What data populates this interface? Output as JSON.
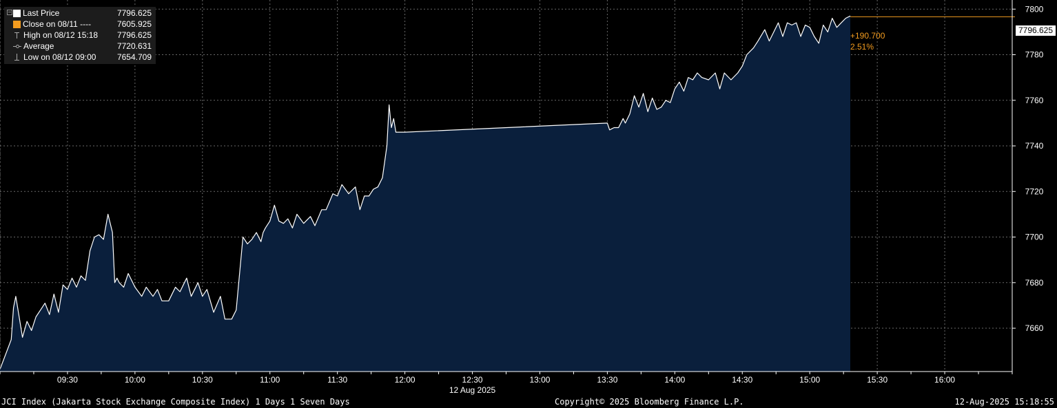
{
  "legend": {
    "last_price": {
      "label": "Last Price",
      "value": "7796.625"
    },
    "close": {
      "label": "Close on 08/11 ----",
      "value": "7605.925"
    },
    "high": {
      "label": "High on 08/12 15:18",
      "value": "7796.625"
    },
    "average": {
      "label": "Average",
      "value": "7720.631"
    },
    "low": {
      "label": "Low on 08/12 09:00",
      "value": "7654.709"
    }
  },
  "change": {
    "abs": "+190.700",
    "pct": "2.51%"
  },
  "last_tag": "7796.625",
  "footer": {
    "left": "JCI Index (Jakarta Stock Exchange Composite Index) 1 Days 1 Seven Days",
    "center": "Copyright© 2025 Bloomberg Finance L.P.",
    "right": "12-Aug-2025 15:18:55"
  },
  "colors": {
    "line": "#ffffff",
    "area": "#0a1f3c",
    "accent": "#f39c1f",
    "grid": "#6a6a6a",
    "axis": "#ffffff"
  },
  "chart_data": {
    "type": "area",
    "date_label": "12 Aug 2025",
    "x_ticks": [
      "09:30",
      "10:00",
      "10:30",
      "11:00",
      "11:30",
      "12:00",
      "12:30",
      "13:00",
      "13:30",
      "14:00",
      "14:30",
      "15:00",
      "15:30",
      "16:00"
    ],
    "x_range": [
      "09:00",
      "16:30"
    ],
    "y_ticks": [
      7660,
      7680,
      7700,
      7720,
      7740,
      7760,
      7780,
      7800
    ],
    "ylim": [
      7641,
      7804
    ],
    "grid": true,
    "reference_line": 7796.625,
    "series": [
      {
        "x": [
          "09:00",
          "09:05",
          "09:06",
          "09:07",
          "09:09",
          "09:10",
          "09:12",
          "09:14",
          "09:16",
          "09:18",
          "09:20",
          "09:22",
          "09:24",
          "09:26",
          "09:28",
          "09:30",
          "09:32",
          "09:34",
          "09:36",
          "09:38",
          "09:40",
          "09:42",
          "09:44",
          "09:46",
          "09:48",
          "09:50",
          "09:51",
          "09:52",
          "09:53",
          "09:55",
          "09:57",
          "10:00",
          "10:03",
          "10:05",
          "10:08",
          "10:10",
          "10:12",
          "10:15",
          "10:18",
          "10:20",
          "10:23",
          "10:25",
          "10:28",
          "10:30",
          "10:32",
          "10:35",
          "10:38",
          "10:40",
          "10:43",
          "10:45",
          "10:48",
          "10:50",
          "10:52",
          "10:54",
          "10:56",
          "10:57",
          "10:58",
          "11:00",
          "11:02",
          "11:04",
          "11:06",
          "11:08",
          "11:10",
          "11:12",
          "11:15",
          "11:18",
          "11:20",
          "11:23",
          "11:25",
          "11:28",
          "11:30",
          "11:32",
          "11:35",
          "11:38",
          "11:40",
          "11:42",
          "11:44",
          "11:46",
          "11:48",
          "11:50",
          "11:52",
          "11:53",
          "11:54",
          "11:55",
          "11:56",
          "11:58",
          "12:00",
          "13:30",
          "13:31",
          "13:33",
          "13:35",
          "13:37",
          "13:38",
          "13:40",
          "13:42",
          "13:44",
          "13:46",
          "13:48",
          "13:50",
          "13:52",
          "13:54",
          "13:56",
          "13:58",
          "14:00",
          "14:02",
          "14:04",
          "14:06",
          "14:08",
          "14:10",
          "14:12",
          "14:15",
          "14:18",
          "14:20",
          "14:22",
          "14:25",
          "14:28",
          "14:30",
          "14:32",
          "14:35",
          "14:37",
          "14:40",
          "14:42",
          "14:44",
          "14:46",
          "14:48",
          "14:50",
          "14:52",
          "14:54",
          "14:56",
          "14:58",
          "15:00",
          "15:02",
          "15:04",
          "15:06",
          "15:08",
          "15:10",
          "15:12",
          "15:14",
          "15:16",
          "15:18"
        ],
        "y": [
          7642,
          7655,
          7669,
          7674,
          7662,
          7656,
          7663,
          7659,
          7665,
          7668,
          7671,
          7666,
          7675,
          7667,
          7679,
          7677,
          7682,
          7678,
          7683,
          7681,
          7694,
          7700,
          7701,
          7699,
          7710,
          7702,
          7680,
          7682,
          7680,
          7678,
          7684,
          7678,
          7674,
          7678,
          7674,
          7677,
          7672,
          7672,
          7678,
          7676,
          7682,
          7674,
          7680,
          7674,
          7677,
          7667,
          7674,
          7664,
          7664,
          7668,
          7700,
          7697,
          7699,
          7702,
          7698,
          7702,
          7704,
          7707,
          7714,
          7707,
          7706,
          7708,
          7704,
          7710,
          7706,
          7709,
          7705,
          7712,
          7712,
          7719,
          7718,
          7723,
          7719,
          7722,
          7712,
          7718,
          7718,
          7721,
          7722,
          7726,
          7740,
          7758,
          7748,
          7752,
          7746,
          7746,
          7746,
          7750,
          7747,
          7748,
          7748,
          7752,
          7750,
          7754,
          7762,
          7757,
          7763,
          7755,
          7761,
          7756,
          7757,
          7760,
          7759,
          7765,
          7768,
          7764,
          7770,
          7769,
          7772,
          7770,
          7769,
          7772,
          7765,
          7772,
          7769,
          7772,
          7775,
          7780,
          7783,
          7786,
          7791,
          7786,
          7790,
          7794,
          7788,
          7794,
          7793,
          7794,
          7788,
          7793,
          7792,
          7788,
          7785,
          7793,
          7790,
          7796,
          7792,
          7794,
          7796,
          7797
        ]
      }
    ]
  }
}
